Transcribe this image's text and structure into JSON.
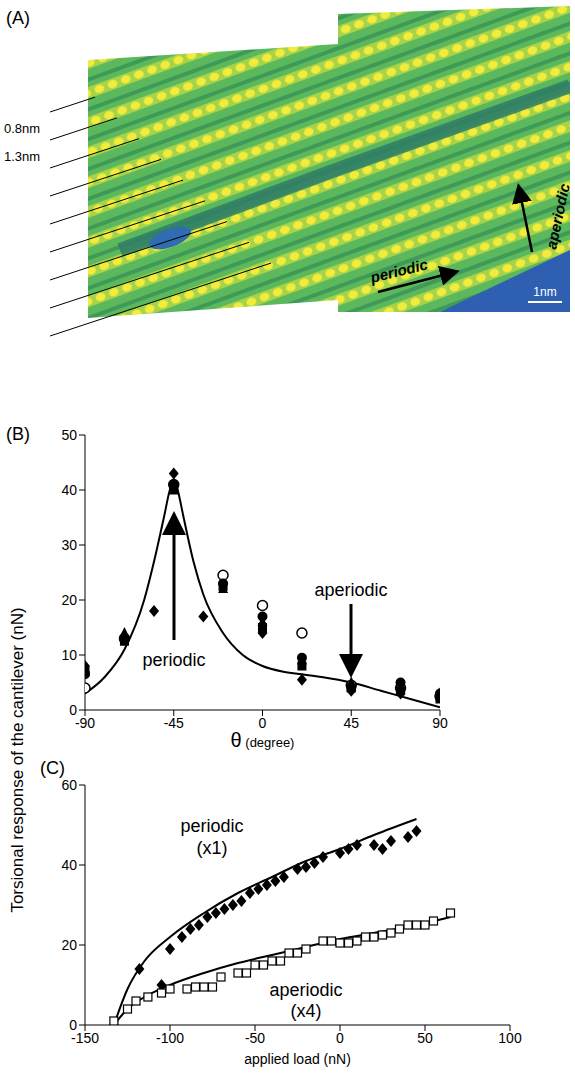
{
  "chart_data": [
    {
      "type": "image",
      "title": "(A)",
      "annotations": [
        "0.8nm",
        "1.3nm",
        "periodic",
        "aperiodic",
        "1nm"
      ]
    },
    {
      "type": "scatter",
      "title": "(B)",
      "xlabel": "θ (degree)",
      "ylabel": "Torsional response of the cantilever (nN)",
      "xlim": [
        -90,
        90
      ],
      "xticks": [
        -90,
        -45,
        0,
        45,
        90
      ],
      "ylim": [
        0,
        50
      ],
      "yticks": [
        0,
        10,
        20,
        30,
        40,
        50
      ],
      "annotations": [
        "periodic",
        "aperiodic"
      ],
      "series": [
        {
          "type": "line",
          "color": "#000000",
          "x": [
            -90,
            -80,
            -70,
            -60,
            -55,
            -50,
            -47,
            -45,
            -43,
            -40,
            -35,
            -30,
            -20,
            -10,
            0,
            10,
            20,
            30,
            45,
            60,
            75,
            90
          ],
          "values": [
            3,
            6,
            11,
            20,
            27,
            35,
            40,
            42,
            40,
            35,
            27,
            21,
            14,
            10,
            8,
            7,
            6.5,
            6,
            5,
            3.5,
            2,
            0.5
          ]
        },
        {
          "type": "scatter",
          "marker": "circle-open",
          "color": "#000000",
          "x": [
            -90,
            -70,
            -45,
            -20,
            0,
            20,
            45,
            70,
            90
          ],
          "values": [
            4,
            13,
            41,
            24.5,
            19,
            14,
            4.5,
            4,
            2.5
          ]
        },
        {
          "type": "scatter",
          "marker": "circle",
          "color": "#000000",
          "x": [
            -90,
            -70,
            -45,
            -20,
            0,
            20,
            45,
            70,
            90
          ],
          "values": [
            6.5,
            13,
            41,
            23,
            17,
            9.5,
            4,
            5,
            3
          ]
        },
        {
          "type": "scatter",
          "marker": "square",
          "color": "#000000",
          "x": [
            -90,
            -70,
            -45,
            -20,
            0,
            20,
            45,
            70,
            90
          ],
          "values": [
            7,
            12.5,
            40,
            22.5,
            15,
            8,
            4,
            3.5,
            2
          ]
        },
        {
          "type": "scatter",
          "marker": "triangle",
          "color": "#000000",
          "x": [
            -90,
            -70,
            -45,
            -20,
            0,
            20,
            45,
            70,
            90
          ],
          "values": [
            7.5,
            14,
            40,
            22,
            16,
            9,
            5,
            4,
            2.5
          ]
        },
        {
          "type": "scatter",
          "marker": "diamond",
          "color": "#000000",
          "x": [
            -90,
            -55,
            -45,
            -30,
            0,
            20,
            45,
            70,
            90
          ],
          "values": [
            8,
            18,
            43,
            17,
            14,
            5.5,
            3.5,
            3,
            3
          ]
        }
      ]
    },
    {
      "type": "scatter",
      "title": "(C)",
      "xlabel": "applied load (nN)",
      "xlim": [
        -150,
        100
      ],
      "xticks": [
        -150,
        -100,
        -50,
        0,
        50,
        100
      ],
      "ylim": [
        0,
        60
      ],
      "yticks": [
        0,
        20,
        40,
        60
      ],
      "annotations": [
        "periodic (x1)",
        "aperiodic (x4)"
      ],
      "series": [
        {
          "type": "line",
          "color": "#000000",
          "x": [
            -133,
            -125,
            -115,
            -100,
            -80,
            -60,
            -40,
            -20,
            0,
            20,
            45
          ],
          "values": [
            0,
            9,
            16,
            22,
            28,
            33,
            37,
            41,
            44,
            47.5,
            51.5
          ]
        },
        {
          "type": "line",
          "color": "#000000",
          "x": [
            -133,
            -125,
            -115,
            -100,
            -80,
            -60,
            -40,
            -20,
            0,
            20,
            40,
            65
          ],
          "values": [
            0,
            4,
            7,
            10,
            13,
            15.5,
            17.5,
            19.5,
            21.5,
            23,
            24.5,
            27
          ]
        },
        {
          "type": "scatter",
          "marker": "diamond",
          "color": "#000000",
          "x": [
            -133,
            -118,
            -105,
            -100,
            -93,
            -88,
            -83,
            -78,
            -73,
            -68,
            -63,
            -58,
            -53,
            -48,
            -43,
            -38,
            -33,
            -25,
            -20,
            -15,
            -10,
            0,
            5,
            10,
            20,
            25,
            30,
            40,
            45
          ],
          "values": [
            0,
            14,
            10,
            19,
            22,
            24,
            25,
            27,
            28,
            29,
            30,
            31,
            33,
            34,
            35,
            36,
            37,
            39,
            39.5,
            40.5,
            42,
            43,
            44,
            45,
            45,
            44,
            46,
            47,
            48.5
          ]
        },
        {
          "type": "scatter",
          "marker": "square-open",
          "color": "#000000",
          "x": [
            -133,
            -125,
            -120,
            -113,
            -105,
            -100,
            -90,
            -85,
            -80,
            -75,
            -70,
            -60,
            -55,
            -50,
            -45,
            -40,
            -35,
            -30,
            -25,
            -20,
            -10,
            -5,
            0,
            5,
            10,
            15,
            20,
            25,
            30,
            35,
            40,
            45,
            50,
            55,
            65
          ],
          "values": [
            1,
            4,
            6,
            7,
            8,
            9,
            9,
            9.5,
            9.5,
            9.5,
            12,
            13,
            13,
            15,
            15,
            16,
            16,
            18,
            18,
            19,
            21,
            21,
            20.5,
            20.5,
            21,
            22,
            22,
            22.5,
            23,
            24,
            25,
            25,
            25,
            26,
            28
          ]
        }
      ]
    }
  ]
}
